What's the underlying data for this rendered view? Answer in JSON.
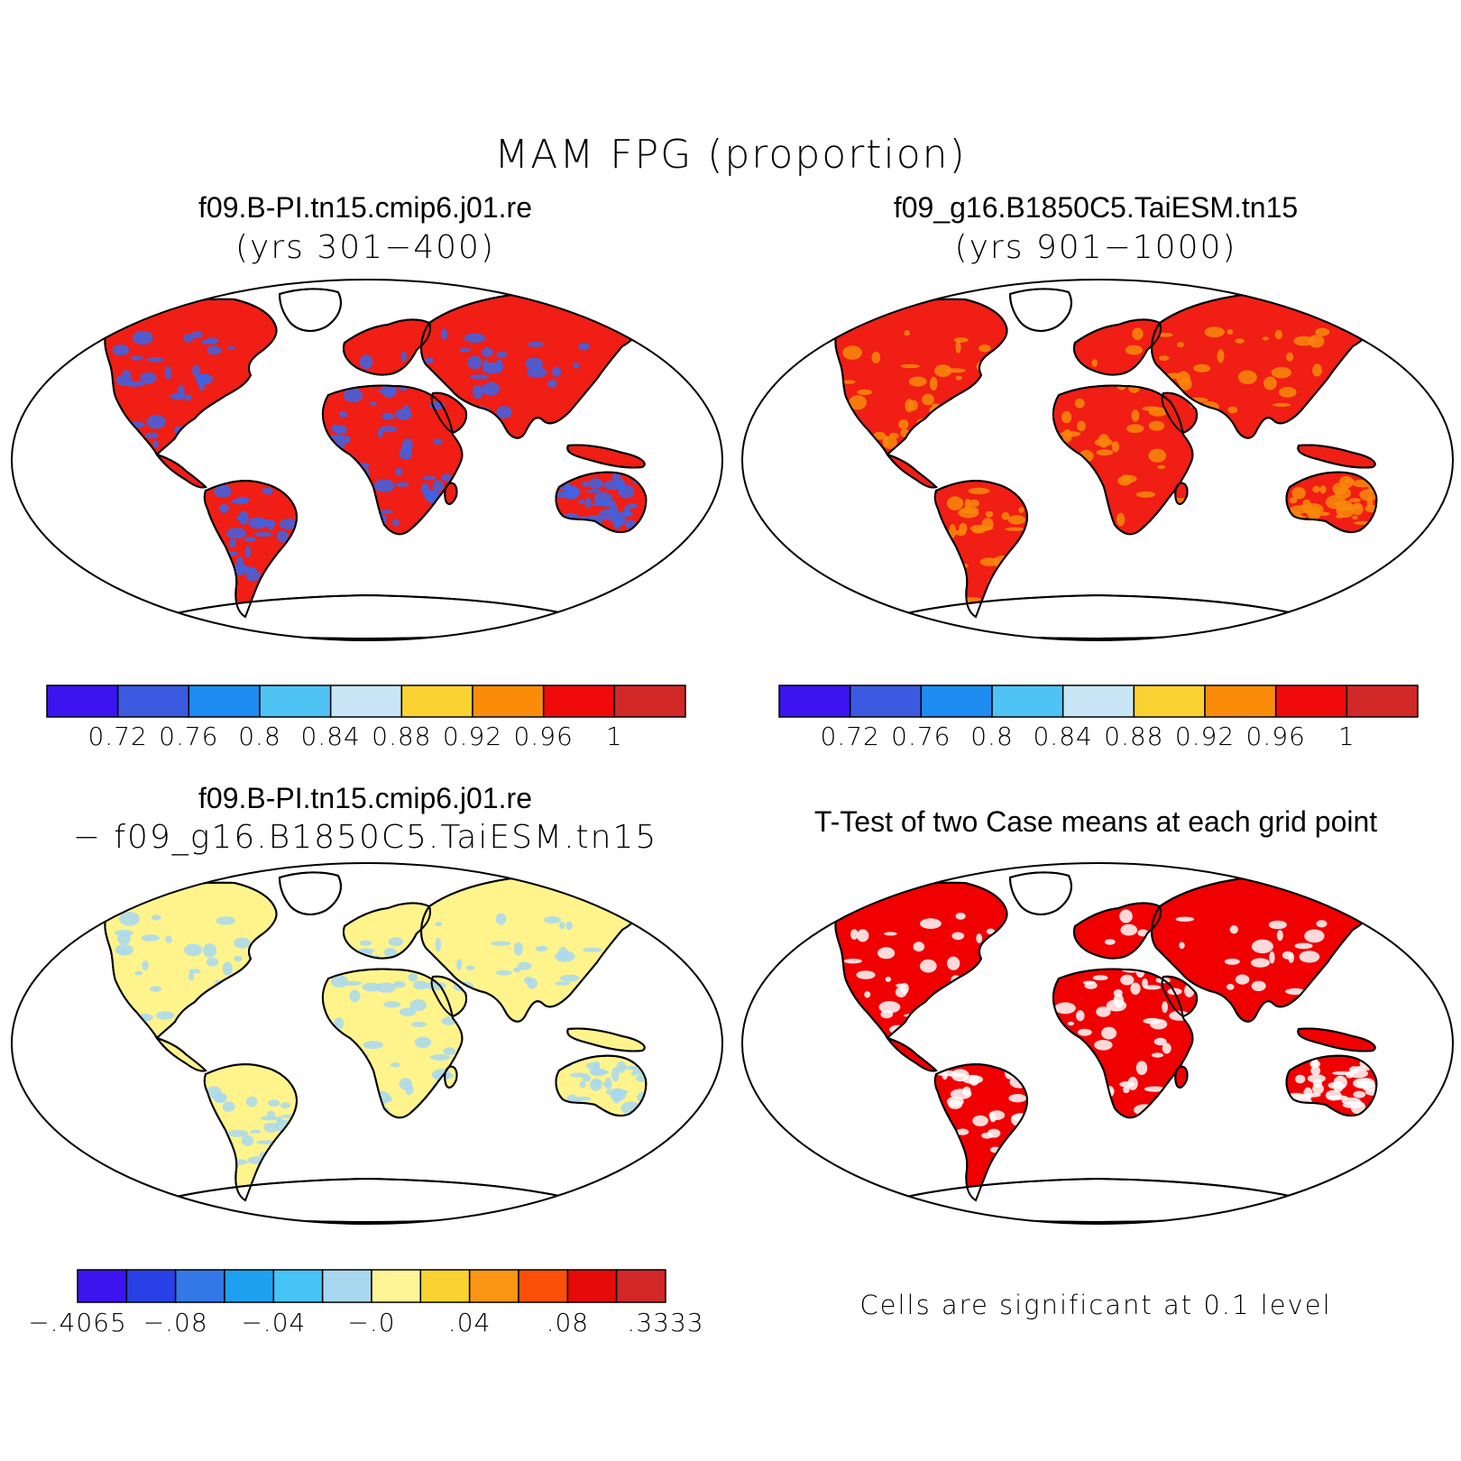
{
  "figure": {
    "title": "MAM FPG (proportion)"
  },
  "panels": [
    {
      "id": "p1",
      "title": "f09.B-PI.tn15.cmip6.j01.re",
      "subtitle": "(yrs 301−400)",
      "fill_color": "#f01e14",
      "secondary_color": "#3c64e6"
    },
    {
      "id": "p2",
      "title": "f09_g16.B1850C5.TaiESM.tn15",
      "subtitle": "(yrs 901−1000)",
      "fill_color": "#f01e14",
      "secondary_color": "#f78a0a"
    },
    {
      "id": "p3",
      "title": "f09.B-PI.tn15.cmip6.j01.re",
      "subtitle": "− f09_g16.B1850C5.TaiESM.tn15",
      "fill_color": "#fff48c",
      "secondary_color": "#a8d8f0"
    },
    {
      "id": "p4",
      "title": "T-Test of two Case means at each grid point",
      "subtitle": "",
      "fill_color": "#f00000",
      "secondary_color": "#ffffff",
      "note": "Cells are significant at 0.1 level"
    }
  ],
  "colorbars": {
    "proportion": {
      "colors": [
        "#3c14f0",
        "#3c5ae1",
        "#1e8cf0",
        "#50c3f5",
        "#c8e6f5",
        "#fad232",
        "#fa8c0a",
        "#f00a0a",
        "#d22828"
      ],
      "labels": [
        "0.72",
        "0.76",
        "0.8",
        "0.84",
        "0.88",
        "0.92",
        "0.96",
        "1"
      ]
    },
    "difference": {
      "colors": [
        "#3c14f0",
        "#2840e6",
        "#3278e6",
        "#1ea0f0",
        "#46c3f5",
        "#a8d8f0",
        "#fff596",
        "#fad232",
        "#fa9614",
        "#fa500a",
        "#e60a0a",
        "#d22828"
      ],
      "labels": [
        "−.4065",
        "−.08",
        "−.04",
        "−.0",
        ".04",
        ".08",
        ".3333"
      ]
    }
  }
}
